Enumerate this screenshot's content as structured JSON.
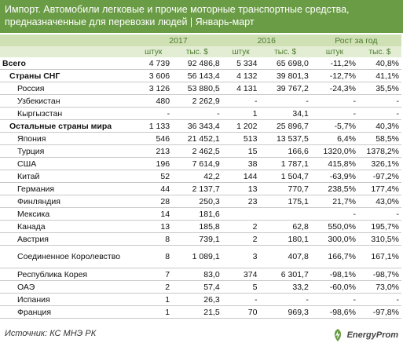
{
  "title": {
    "line1": "Импорт. Автомобили легковые и прочие моторные транспортные средства,",
    "line2": "предназначенные для перевозки людей | Январь-март"
  },
  "header": {
    "year1": "2017",
    "year2": "2016",
    "growth": "Рост за год",
    "units": [
      "штук",
      "тыс. $",
      "штук",
      "тыс. $",
      "штук",
      "тыс. $"
    ]
  },
  "rows": [
    {
      "name": "Всего",
      "v": [
        "4 739",
        "92 486,8",
        "5 334",
        "65 698,0",
        "-11,2%",
        "40,8%"
      ]
    },
    {
      "name": "Страны СНГ",
      "v": [
        "3 606",
        "56 143,4",
        "4 132",
        "39 801,3",
        "-12,7%",
        "41,1%"
      ]
    },
    {
      "name": "Россия",
      "v": [
        "3 126",
        "53 880,5",
        "4 131",
        "39 767,2",
        "-24,3%",
        "35,5%"
      ]
    },
    {
      "name": "Узбекистан",
      "v": [
        "480",
        "2 262,9",
        "-",
        "-",
        "-",
        "-"
      ]
    },
    {
      "name": "Кыргызстан",
      "v": [
        "-",
        "-",
        "1",
        "34,1",
        "-",
        "-"
      ]
    },
    {
      "name": "Остальные страны мира",
      "v": [
        "1 133",
        "36 343,4",
        "1 202",
        "25 896,7",
        "-5,7%",
        "40,3%"
      ]
    },
    {
      "name": "Япония",
      "v": [
        "546",
        "21 452,1",
        "513",
        "13 537,5",
        "6,4%",
        "58,5%"
      ]
    },
    {
      "name": "Турция",
      "v": [
        "213",
        "2 462,5",
        "15",
        "166,6",
        "1320,0%",
        "1378,2%"
      ]
    },
    {
      "name": "США",
      "v": [
        "196",
        "7 614,9",
        "38",
        "1 787,1",
        "415,8%",
        "326,1%"
      ]
    },
    {
      "name": "Китай",
      "v": [
        "52",
        "42,2",
        "144",
        "1 504,7",
        "-63,9%",
        "-97,2%"
      ]
    },
    {
      "name": "Германия",
      "v": [
        "44",
        "2 137,7",
        "13",
        "770,7",
        "238,5%",
        "177,4%"
      ]
    },
    {
      "name": "Финляндия",
      "v": [
        "28",
        "250,3",
        "23",
        "175,1",
        "21,7%",
        "43,0%"
      ]
    },
    {
      "name": "Мексика",
      "v": [
        "14",
        "181,6",
        "",
        "",
        "-",
        "-"
      ]
    },
    {
      "name": "Канада",
      "v": [
        "13",
        "185,8",
        "2",
        "62,8",
        "550,0%",
        "195,7%"
      ]
    },
    {
      "name": "Австрия",
      "v": [
        "8",
        "739,1",
        "2",
        "180,1",
        "300,0%",
        "310,5%"
      ]
    },
    {
      "name": "Соединенное Королевство",
      "v": [
        "8",
        "1 089,1",
        "3",
        "407,8",
        "166,7%",
        "167,1%"
      ]
    },
    {
      "name": "Республика Корея",
      "v": [
        "7",
        "83,0",
        "374",
        "6 301,7",
        "-98,1%",
        "-98,7%"
      ]
    },
    {
      "name": "ОАЭ",
      "v": [
        "2",
        "57,4",
        "5",
        "33,2",
        "-60,0%",
        "73,0%"
      ]
    },
    {
      "name": "Испания",
      "v": [
        "1",
        "26,3",
        "-",
        "-",
        "-",
        "-"
      ]
    },
    {
      "name": "Франция",
      "v": [
        "1",
        "21,5",
        "70",
        "969,3",
        "-98,6%",
        "-97,8%"
      ]
    }
  ],
  "footer": {
    "source": "Источник: КС МНЭ РК",
    "logo": "EnergyProm"
  },
  "colors": {
    "title_bg": "#6a9c45",
    "header_bg": "#cfe0b4",
    "subheader_bg": "#e3edd3"
  }
}
